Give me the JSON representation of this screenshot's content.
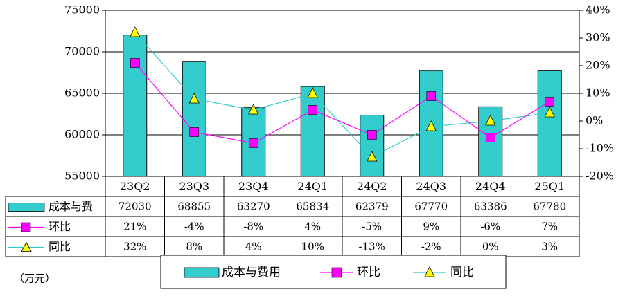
{
  "chart_data": {
    "type": "bar",
    "categories": [
      "23Q2",
      "23Q3",
      "23Q4",
      "24Q1",
      "24Q2",
      "24Q3",
      "24Q4",
      "25Q1"
    ],
    "series": [
      {
        "name": "成本与费用",
        "type": "bar",
        "axis": "left",
        "color": "#33CCCC",
        "values": [
          72030,
          68855,
          63270,
          65834,
          62379,
          67770,
          63386,
          67780
        ]
      },
      {
        "name": "环比",
        "type": "line",
        "axis": "right",
        "color": "#FF00FF",
        "marker": "square",
        "values": [
          21,
          -4,
          -8,
          4,
          -5,
          9,
          -6,
          7
        ]
      },
      {
        "name": "同比",
        "type": "line",
        "axis": "right",
        "color": "#33CCCC",
        "marker": "triangle",
        "marker_color": "#FFFF00",
        "values": [
          32,
          8,
          4,
          10,
          -13,
          -2,
          0,
          3
        ]
      }
    ],
    "y_left": {
      "range": [
        55000,
        75000
      ],
      "ticks": [
        "55000",
        "60000",
        "65000",
        "70000",
        "75000"
      ]
    },
    "y_right": {
      "range": [
        -20,
        40
      ],
      "ticks": [
        "-20%",
        "-10%",
        "0%",
        "10%",
        "20%",
        "30%",
        "40%"
      ]
    },
    "table_rows": [
      {
        "label": "成本与费",
        "cells": [
          "72030",
          "68855",
          "63270",
          "65834",
          "62379",
          "67770",
          "63386",
          "67780"
        ]
      },
      {
        "label": "环比",
        "cells": [
          "21%",
          "-4%",
          "-8%",
          "4%",
          "-5%",
          "9%",
          "-6%",
          "7%"
        ]
      },
      {
        "label": "同比",
        "cells": [
          "32%",
          "8%",
          "4%",
          "10%",
          "-13%",
          "-2%",
          "0%",
          "3%"
        ]
      }
    ],
    "legend": [
      "成本与费用",
      "环比",
      "同比"
    ],
    "legend_position": "bottom",
    "unit_label": "（万元）",
    "grid": true
  }
}
